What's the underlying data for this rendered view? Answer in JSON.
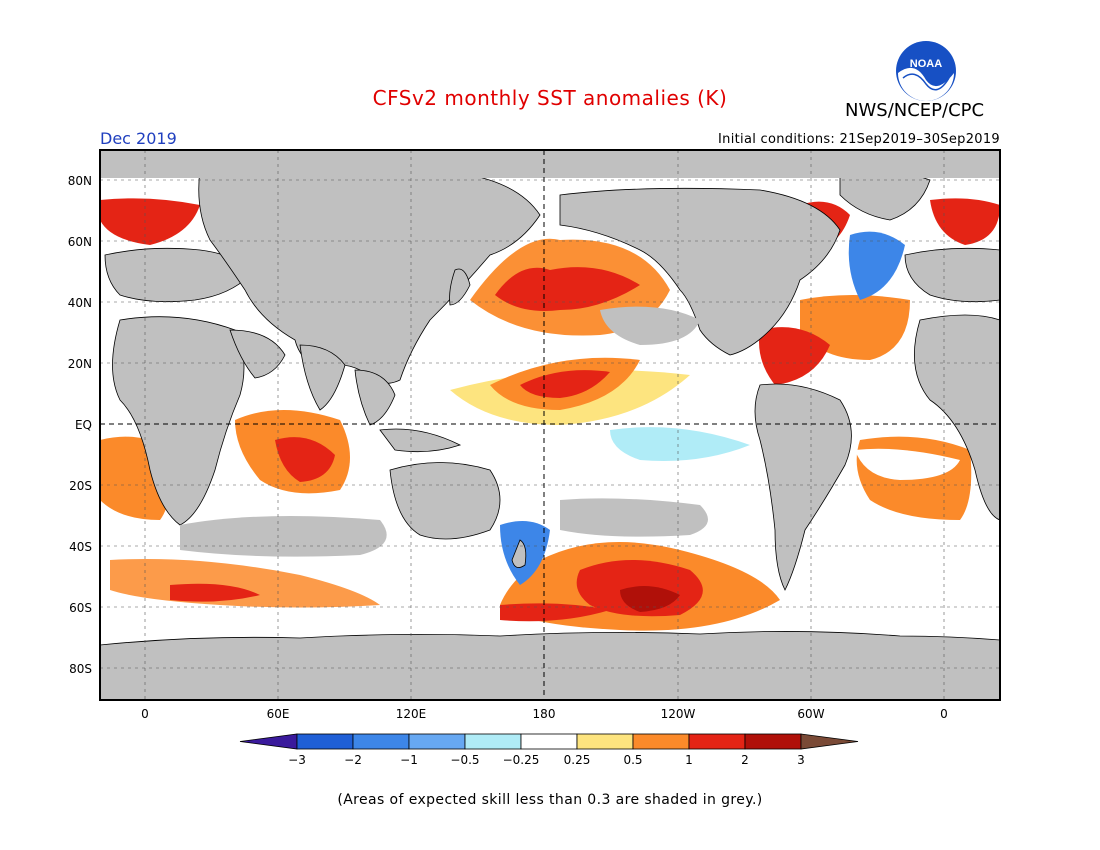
{
  "header": {
    "title": "CFSv2 monthly SST anomalies (K)",
    "period": "Dec 2019",
    "initial_conditions": "Initial conditions: 21Sep2019–30Sep2019",
    "agency": "NWS/NCEP/CPC",
    "logo_text": "NOAA"
  },
  "map": {
    "lat_labels": [
      "80N",
      "60N",
      "40N",
      "20N",
      "EQ",
      "20S",
      "40S",
      "60S",
      "80S"
    ],
    "lon_labels": [
      "0",
      "60E",
      "120E",
      "180",
      "120W",
      "60W",
      "0"
    ],
    "land_color": "#c0c0c0",
    "ocean_color": "#ffffff"
  },
  "colorbar": {
    "labels": [
      "−3",
      "−2",
      "−1",
      "−0.5",
      "−0.25",
      "0.25",
      "0.5",
      "1",
      "2",
      "3"
    ],
    "colors": [
      "#3a1a9c",
      "#1f5fd6",
      "#3d86e8",
      "#67a8f2",
      "#b0ecf7",
      "#ffffff",
      "#fde47f",
      "#fb8a2a",
      "#e42415",
      "#b01009",
      "#7a4a36"
    ]
  },
  "footnote": "(Areas of expected skill less than 0.3 are shaded in grey.)"
}
